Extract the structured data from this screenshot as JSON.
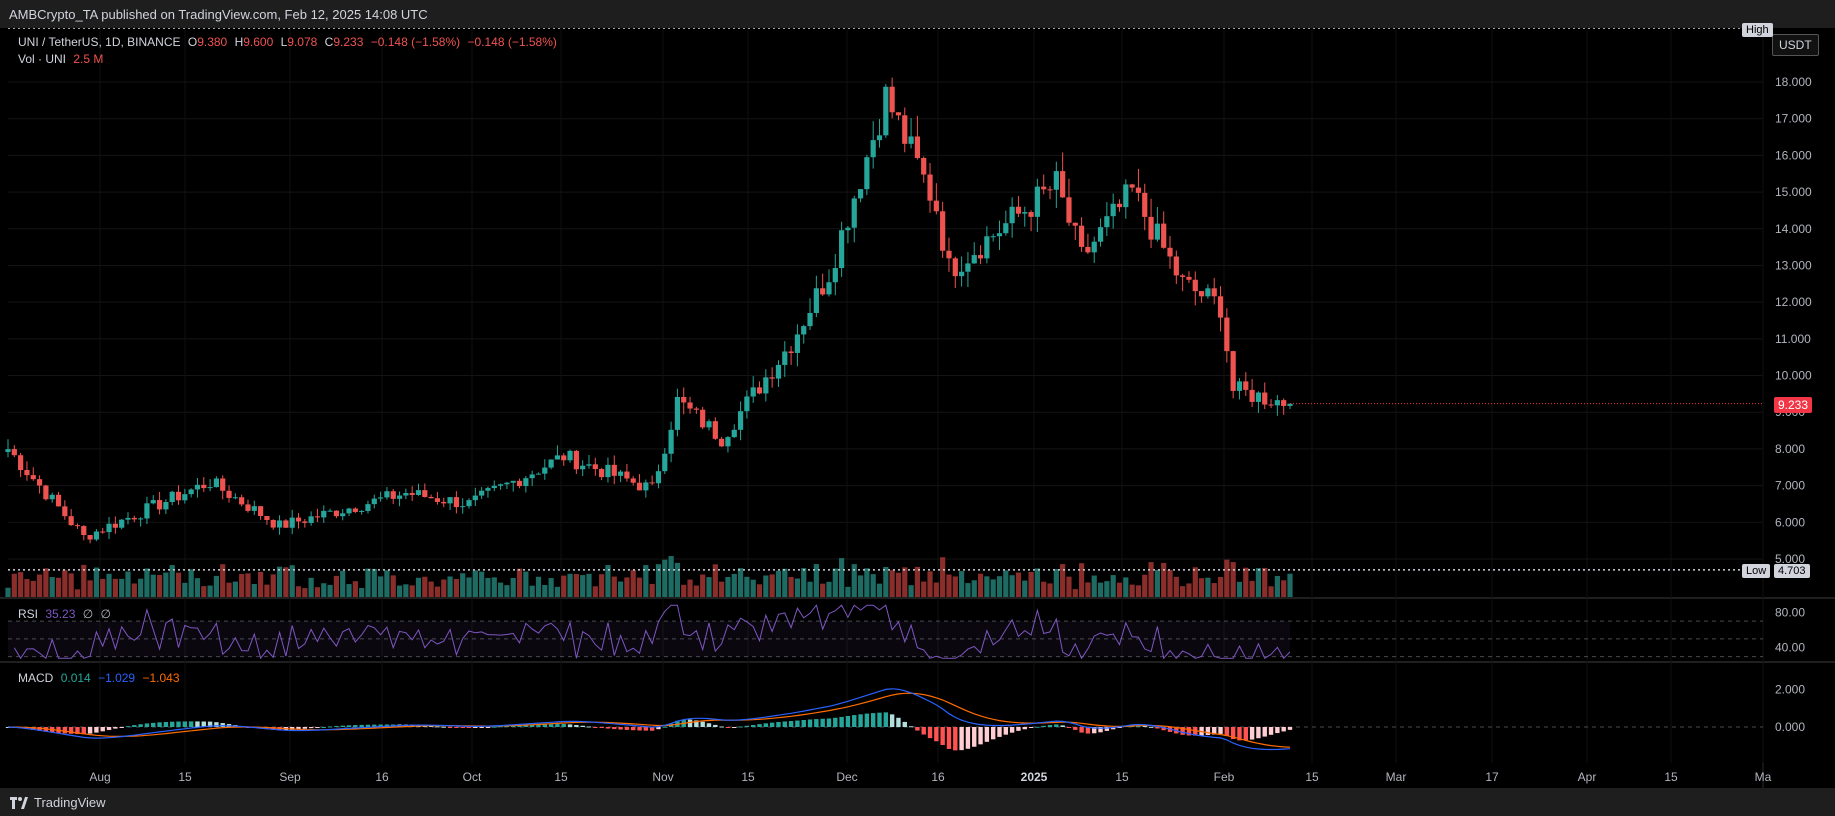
{
  "header": {
    "published": "AMBCrypto_TA published on TradingView.com, Feb 12, 2025 14:08 UTC"
  },
  "legend": {
    "symbol": "UNI / TetherUS, 1D, BINANCE",
    "o_label": "O",
    "o": "9.380",
    "h_label": "H",
    "h": "9.600",
    "l_label": "L",
    "l": "9.078",
    "c_label": "C",
    "c": "9.233",
    "change": "−0.148 (−1.58%)",
    "change2": "−0.148 (−1.58%)",
    "vol_label": "Vol · UNI",
    "vol": "2.5 M"
  },
  "rsi_legend": {
    "label": "RSI",
    "value": "35.23",
    "extra1": "∅",
    "extra2": "∅"
  },
  "macd_legend": {
    "label": "MACD",
    "v1": "0.014",
    "v2": "−1.029",
    "v3": "−1.043"
  },
  "price_axis": {
    "currency": "USDT",
    "last_price": "9.233",
    "high_label": "High",
    "low_label": "Low",
    "low_value": "4.703"
  },
  "footer": {
    "brand": "TradingView"
  },
  "colors": {
    "up": "#26a69a",
    "down": "#ef5350",
    "rsi": "#7e57c2",
    "macd": "#2962ff",
    "signal": "#ff6d00"
  },
  "chart_data": [
    {
      "type": "candlestick",
      "title": "UNI / TetherUS, 1D, BINANCE",
      "x_tick_labels": [
        "Aug",
        "15",
        "Sep",
        "16",
        "Oct",
        "15",
        "Nov",
        "15",
        "Dec",
        "16",
        "2025",
        "15",
        "Feb",
        "15",
        "Mar",
        "17",
        "Apr",
        "15",
        "Ma"
      ],
      "y_tick_labels": [
        "5.000",
        "6.000",
        "7.000",
        "8.000",
        "9.000",
        "10.000",
        "11.000",
        "12.000",
        "13.000",
        "14.000",
        "15.000",
        "16.000",
        "17.000",
        "18.000"
      ],
      "ylim": [
        4.2,
        19.2
      ],
      "last_price": 9.233,
      "high_marker": 19.0,
      "low_marker": 4.703,
      "series_close_approx": [
        {
          "date": "2024-07-24",
          "close": 8.0
        },
        {
          "date": "2024-08-05",
          "close": 5.6
        },
        {
          "date": "2024-08-25",
          "close": 7.1
        },
        {
          "date": "2024-09-05",
          "close": 5.9
        },
        {
          "date": "2024-09-25",
          "close": 6.8
        },
        {
          "date": "2024-10-05",
          "close": 6.5
        },
        {
          "date": "2024-10-20",
          "close": 7.8
        },
        {
          "date": "2024-11-03",
          "close": 6.9
        },
        {
          "date": "2024-11-07",
          "close": 9.3
        },
        {
          "date": "2024-11-14",
          "close": 8.3
        },
        {
          "date": "2024-11-25",
          "close": 10.9
        },
        {
          "date": "2024-12-01",
          "close": 12.8
        },
        {
          "date": "2024-12-08",
          "close": 16.5
        },
        {
          "date": "2024-12-10",
          "close": 17.6
        },
        {
          "date": "2024-12-18",
          "close": 14.6
        },
        {
          "date": "2024-12-20",
          "close": 12.9
        },
        {
          "date": "2025-01-06",
          "close": 15.2
        },
        {
          "date": "2025-01-10",
          "close": 13.2
        },
        {
          "date": "2025-01-18",
          "close": 15.0
        },
        {
          "date": "2025-01-26",
          "close": 12.5
        },
        {
          "date": "2025-02-01",
          "close": 11.9
        },
        {
          "date": "2025-02-03",
          "close": 9.6
        },
        {
          "date": "2025-02-12",
          "close": 9.233
        }
      ]
    },
    {
      "type": "line",
      "title": "RSI",
      "y_tick_labels": [
        "80.00",
        "40.00"
      ],
      "ylim": [
        25,
        95
      ],
      "last_value": 35.23
    },
    {
      "type": "line",
      "title": "MACD",
      "y_tick_labels": [
        "2.000",
        "0.000"
      ],
      "ylim": [
        -1.5,
        3.0
      ],
      "series": [
        {
          "name": "MACD",
          "last_value": -1.029
        },
        {
          "name": "Signal",
          "last_value": -1.043
        }
      ],
      "histogram_last": 0.014
    }
  ]
}
